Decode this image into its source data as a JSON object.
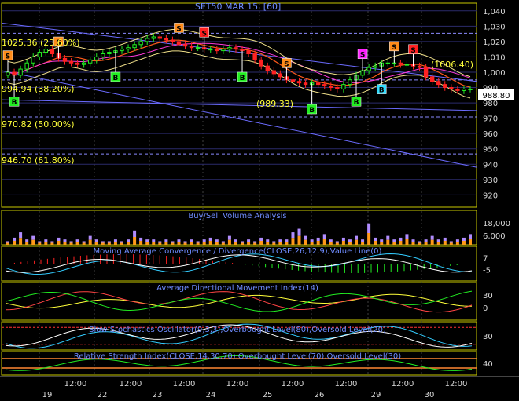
{
  "chart_data": [
    {
      "panel": "price",
      "type": "candlestick",
      "title": "SET50 MAR 15",
      "interval": "[60]",
      "y_ticks": [
        1040,
        1030,
        1020,
        1010,
        1000,
        990,
        980,
        970,
        960,
        950,
        940,
        930,
        920
      ],
      "ylim": [
        912,
        1045
      ],
      "last_price": "988.80",
      "fib_levels": [
        {
          "label": "1025.36 (23.60%)",
          "value": 1025.36
        },
        {
          "label": "994.94 (38.20%)",
          "value": 994.94
        },
        {
          "label": "970.82 (50.00%)",
          "value": 970.82
        },
        {
          "label": "946.70 (61.80%)",
          "value": 946.7
        }
      ],
      "annotations": [
        {
          "label": "(1006.40)",
          "value": 1006.4
        },
        {
          "label": "(989.33)",
          "value": 989.33
        }
      ],
      "closes": [
        1000,
        998,
        1002,
        1006,
        1010,
        1013,
        1015,
        1012,
        1009,
        1007,
        1006,
        1005,
        1006,
        1008,
        1010,
        1012,
        1013,
        1014,
        1015,
        1016,
        1018,
        1020,
        1022,
        1023,
        1022,
        1021,
        1020,
        1018,
        1017,
        1016,
        1016,
        1015,
        1015,
        1014,
        1015,
        1016,
        1015,
        1014,
        1012,
        1008,
        1004,
        1001,
        999,
        997,
        995,
        994,
        993,
        992,
        993,
        992,
        991,
        990,
        989,
        992,
        995,
        998,
        1001,
        1003,
        1004,
        1006,
        1006,
        1006,
        1005,
        1005,
        1004,
        1003,
        997,
        994,
        992,
        990,
        989,
        988,
        989,
        989
      ],
      "signals": [
        {
          "t": "S",
          "i": 0,
          "color": "#ff8c1a"
        },
        {
          "t": "S",
          "i": 8,
          "color": "#ff8c1a"
        },
        {
          "t": "S",
          "i": 27,
          "color": "#ff8c1a"
        },
        {
          "t": "S",
          "i": 31,
          "color": "#ff2020"
        },
        {
          "t": "S",
          "i": 44,
          "color": "#ff8c1a"
        },
        {
          "t": "S",
          "i": 56,
          "color": "#ff20ff"
        },
        {
          "t": "S",
          "i": 61,
          "color": "#ff8c1a"
        },
        {
          "t": "S",
          "i": 64,
          "color": "#ff2020"
        },
        {
          "t": "B",
          "i": 1,
          "color": "#22ee22"
        },
        {
          "t": "B",
          "i": 17,
          "color": "#22ee22"
        },
        {
          "t": "B",
          "i": 37,
          "color": "#22ee22"
        },
        {
          "t": "B",
          "i": 48,
          "color": "#22ee22"
        },
        {
          "t": "B",
          "i": 55,
          "color": "#22ee22"
        },
        {
          "t": "B",
          "i": 59,
          "color": "#33ddff"
        }
      ]
    },
    {
      "panel": "volume",
      "type": "bar",
      "title": "Buy/Sell Volume Analysis",
      "y_ticks": [
        "18,000",
        "6,000"
      ],
      "values": [
        2,
        4,
        7,
        3,
        5,
        2,
        3,
        2,
        4,
        3,
        2,
        3,
        2,
        5,
        3,
        2,
        2,
        3,
        2,
        3,
        8,
        4,
        3,
        3,
        2,
        3,
        2,
        3,
        2,
        3,
        2,
        3,
        4,
        3,
        2,
        5,
        3,
        2,
        3,
        2,
        4,
        3,
        2,
        3,
        3,
        7,
        9,
        5,
        3,
        4,
        6,
        3,
        2,
        4,
        3,
        5,
        3,
        12,
        4,
        3,
        5,
        3,
        4,
        6,
        3,
        2,
        3,
        5,
        3,
        4,
        2,
        3,
        4,
        6
      ]
    },
    {
      "panel": "macd",
      "type": "line",
      "title": "Moving Average Convergence / Divergence(CLOSE,26,12,9),Value Line(0)",
      "y_ticks": [
        "7",
        "-5"
      ]
    },
    {
      "panel": "adx",
      "type": "line",
      "title": "Average Directional Movement Index(14)",
      "y_ticks": [
        "30",
        "0"
      ]
    },
    {
      "panel": "stochastic",
      "type": "line",
      "title": "Slow Stochastics Oscillator(9,3,3),Overbought Level(80),Oversold Level(20)",
      "y_ticks": [
        "30"
      ]
    },
    {
      "panel": "rsi",
      "type": "line",
      "title": "Relative Strength Index(CLOSE,14,30,70),Overbought Level(70),Oversold Level(30)",
      "y_ticks": [
        "40"
      ]
    }
  ],
  "x_axis": {
    "days": [
      "19",
      "22",
      "23",
      "24",
      "25",
      "26",
      "29",
      "30"
    ],
    "hours": [
      "12:00",
      "12:00",
      "12:00",
      "12:00",
      "12:00",
      "12:00",
      "12:00",
      "12:00",
      "12:00"
    ]
  },
  "colors": {
    "background": "#000000",
    "grid": "#2b2b6b",
    "panel_border": "#c8c800",
    "title": "#6f8cff",
    "axis_text": "#d8d8d8",
    "fib_text": "#ffff3a",
    "up": "#22ee22",
    "down": "#ff2222",
    "volume_buy": "#ff9a1a",
    "volume_sell": "#b08cff"
  }
}
